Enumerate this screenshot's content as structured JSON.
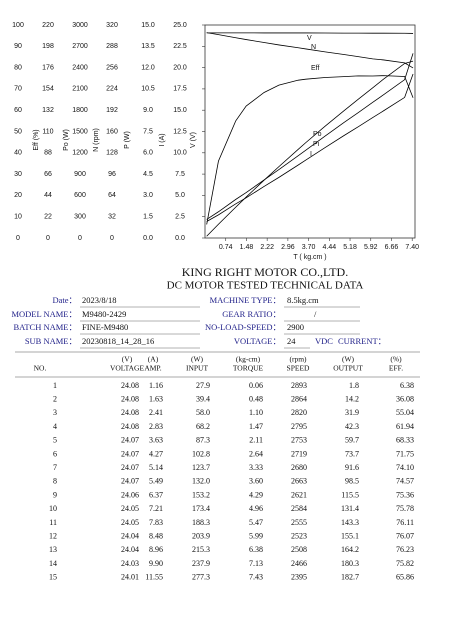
{
  "chart_data": {
    "type": "line",
    "x_label": "T ( kg.cm )",
    "x": [
      0.06,
      0.48,
      1.1,
      1.47,
      2.11,
      2.64,
      3.33,
      3.6,
      4.29,
      4.96,
      5.47,
      5.99,
      6.38,
      7.13,
      7.43
    ],
    "xlim": [
      0,
      7.5
    ],
    "xticks": [
      0.74,
      1.48,
      2.22,
      2.96,
      {
        "value": 3.7,
        "label": "3.70"
      },
      4.44,
      5.18,
      5.92,
      6.66,
      {
        "value": 7.4,
        "label": "7.40"
      }
    ],
    "axes": [
      {
        "label": "Eff (%)",
        "lim": [
          0,
          100
        ],
        "ticks": [
          0,
          10,
          20,
          30,
          40,
          50,
          60,
          70,
          80,
          90,
          100
        ]
      },
      {
        "label": "Po (W)",
        "lim": [
          0,
          220
        ],
        "ticks": [
          0,
          22,
          44,
          66,
          88,
          110,
          132,
          154,
          176,
          198,
          220
        ]
      },
      {
        "label": "N (rpm)",
        "lim": [
          0,
          3000
        ],
        "ticks": [
          0,
          300,
          600,
          900,
          1200,
          1500,
          1800,
          2100,
          2400,
          2700,
          3000
        ]
      },
      {
        "label": "P (W)",
        "lim": [
          0,
          320
        ],
        "ticks": [
          0,
          32,
          64,
          96,
          128,
          160,
          192,
          224,
          256,
          288,
          320
        ]
      },
      {
        "label": "I (A)",
        "lim": [
          0,
          15
        ],
        "ticks": [
          {
            "value": 0,
            "label": "0.0"
          },
          1.5,
          {
            "value": 3,
            "label": "3.0"
          },
          4.5,
          {
            "value": 6,
            "label": "6.0"
          },
          7.5,
          {
            "value": 9,
            "label": "9.0"
          },
          10.5,
          {
            "value": 12,
            "label": "12.0"
          },
          13.5,
          {
            "value": 15,
            "label": "15.0"
          }
        ]
      },
      {
        "label": "V (V)",
        "lim": [
          0,
          25
        ],
        "ticks": [
          {
            "value": 0,
            "label": "0.0"
          },
          2.5,
          {
            "value": 5,
            "label": "5.0"
          },
          7.5,
          {
            "value": 10,
            "label": "10.0"
          },
          12.5,
          {
            "value": 15,
            "label": "15.0"
          },
          17.5,
          {
            "value": 20,
            "label": "20.0"
          },
          22.5,
          {
            "value": 25,
            "label": "25.0"
          }
        ]
      }
    ],
    "series": [
      {
        "name": "V",
        "axis": 5,
        "color": "#000000",
        "values": [
          24.08,
          24.08,
          24.08,
          24.08,
          24.07,
          24.07,
          24.07,
          24.07,
          24.06,
          24.05,
          24.05,
          24.04,
          24.04,
          24.03,
          24.01
        ]
      },
      {
        "name": "N",
        "axis": 2,
        "color": "#000000",
        "values": [
          2893,
          2864,
          2820,
          2795,
          2753,
          2719,
          2680,
          2663,
          2621,
          2584,
          2555,
          2523,
          2508,
          2466,
          2395
        ]
      },
      {
        "name": "Eff",
        "axis": 0,
        "color": "#000000",
        "values": [
          6.38,
          36.08,
          55.04,
          61.94,
          68.33,
          71.75,
          74.1,
          74.57,
          75.36,
          75.78,
          76.11,
          76.07,
          76.23,
          75.82,
          65.86
        ]
      },
      {
        "name": "Po",
        "axis": 1,
        "color": "#000000",
        "values": [
          1.8,
          14.2,
          31.9,
          42.3,
          59.7,
          73.7,
          91.6,
          98.5,
          115.5,
          131.4,
          143.3,
          155.1,
          164.2,
          180.3,
          182.7
        ]
      },
      {
        "name": "Pi",
        "axis": 3,
        "color": "#000000",
        "values": [
          27.9,
          39.4,
          58.0,
          68.2,
          87.3,
          102.8,
          123.7,
          132.0,
          153.2,
          173.4,
          188.3,
          203.9,
          215.3,
          237.9,
          277.3
        ]
      },
      {
        "name": "I",
        "axis": 4,
        "color": "#000000",
        "values": [
          1.16,
          1.63,
          2.41,
          2.83,
          3.63,
          4.27,
          5.14,
          5.49,
          6.37,
          7.21,
          7.83,
          8.48,
          8.96,
          9.9,
          11.55
        ]
      }
    ]
  },
  "report": {
    "company": "KING RIGHT MOTOR CO.,LTD.",
    "subtitle": "DC MOTOR TESTED TECHNICAL DATA",
    "info_left": [
      {
        "label": "Date：",
        "value": "2023/8/18"
      },
      {
        "label": "MODEL NAME：",
        "value": "M9480-2429"
      },
      {
        "label": "BATCH NAME：",
        "value": "FINE-M9480"
      },
      {
        "label": "SUB NAME：",
        "value": "20230818_14_28_16"
      }
    ],
    "info_right": [
      {
        "label": "MACHINE TYPE：",
        "value": "8.5kg.cm"
      },
      {
        "label": "GEAR RATIO：",
        "value": "/"
      },
      {
        "label": "NO-LOAD-SPEED：",
        "value": "2900"
      },
      {
        "label": "VOLTAGE：",
        "value": "24",
        "unit": "VDC",
        "extra": "CURRENT："
      }
    ],
    "table": {
      "columns": [
        {
          "name": "NO."
        },
        {
          "unit": "(V)",
          "name": "VOLTAGE"
        },
        {
          "unit": "(A)",
          "name": "AMP."
        },
        {
          "unit": "(W)",
          "name": "INPUT"
        },
        {
          "unit": "(kg-cm)",
          "name": "TORQUE"
        },
        {
          "unit": "(rpm)",
          "name": "SPEED"
        },
        {
          "unit": "(W)",
          "name": "OUTPUT"
        },
        {
          "unit": "(%)",
          "name": "EFF."
        }
      ],
      "rows": [
        [
          "1",
          "24.08",
          "1.16",
          "27.9",
          "0.06",
          "2893",
          "1.8",
          "6.38"
        ],
        [
          "2",
          "24.08",
          "1.63",
          "39.4",
          "0.48",
          "2864",
          "14.2",
          "36.08"
        ],
        [
          "3",
          "24.08",
          "2.41",
          "58.0",
          "1.10",
          "2820",
          "31.9",
          "55.04"
        ],
        [
          "4",
          "24.08",
          "2.83",
          "68.2",
          "1.47",
          "2795",
          "42.3",
          "61.94"
        ],
        [
          "5",
          "24.07",
          "3.63",
          "87.3",
          "2.11",
          "2753",
          "59.7",
          "68.33"
        ],
        [
          "6",
          "24.07",
          "4.27",
          "102.8",
          "2.64",
          "2719",
          "73.7",
          "71.75"
        ],
        [
          "7",
          "24.07",
          "5.14",
          "123.7",
          "3.33",
          "2680",
          "91.6",
          "74.10"
        ],
        [
          "8",
          "24.07",
          "5.49",
          "132.0",
          "3.60",
          "2663",
          "98.5",
          "74.57"
        ],
        [
          "9",
          "24.06",
          "6.37",
          "153.2",
          "4.29",
          "2621",
          "115.5",
          "75.36"
        ],
        [
          "10",
          "24.05",
          "7.21",
          "173.4",
          "4.96",
          "2584",
          "131.4",
          "75.78"
        ],
        [
          "11",
          "24.05",
          "7.83",
          "188.3",
          "5.47",
          "2555",
          "143.3",
          "76.11"
        ],
        [
          "12",
          "24.04",
          "8.48",
          "203.9",
          "5.99",
          "2523",
          "155.1",
          "76.07"
        ],
        [
          "13",
          "24.04",
          "8.96",
          "215.3",
          "6.38",
          "2508",
          "164.2",
          "76.23"
        ],
        [
          "14",
          "24.03",
          "9.90",
          "237.9",
          "7.13",
          "2466",
          "180.3",
          "75.82"
        ],
        [
          "15",
          "24.01",
          "11.55",
          "277.3",
          "7.43",
          "2395",
          "182.7",
          "65.86"
        ]
      ]
    }
  }
}
